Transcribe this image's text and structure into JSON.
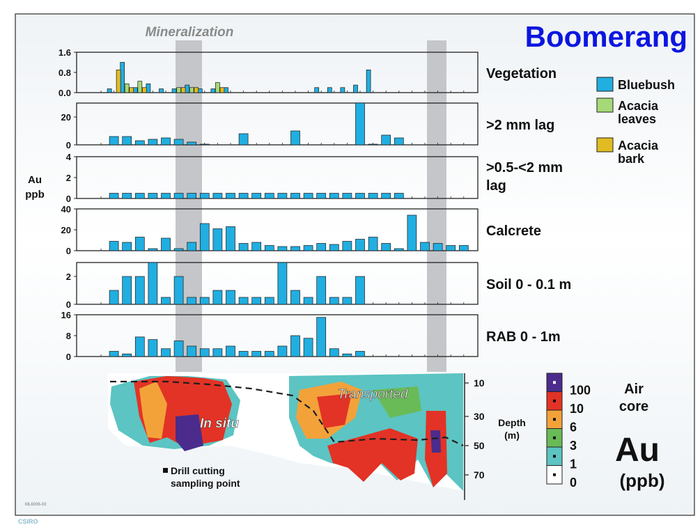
{
  "slide": {
    "title": "Boomerang",
    "mineralization_label": "Mineralization",
    "y_axis_label_line1": "Au",
    "y_axis_label_line2": "ppb",
    "footer_code": "ML6006-03",
    "footer_logo": "CSIRO"
  },
  "colors": {
    "bluebush": "#21aee0",
    "acacia_leaves": "#a6d978",
    "acacia_bark": "#e1bb22",
    "title": "#0b16e0",
    "mineralization_band": "#c4c6c9"
  },
  "legend": {
    "items": [
      {
        "label_line1": "Bluebush",
        "label_line2": "",
        "color": "#21aee0"
      },
      {
        "label_line1": "Acacia",
        "label_line2": "leaves",
        "color": "#a6d978"
      },
      {
        "label_line1": "Acacia",
        "label_line2": "bark",
        "color": "#e1bb22"
      }
    ]
  },
  "chart_data": [
    {
      "type": "bar",
      "panel_label_line1": "Vegetation",
      "panel_label_line2": "",
      "ylim": [
        0,
        1.6
      ],
      "yticks": [
        "0.0",
        "0.8",
        "1.6"
      ],
      "series": [
        {
          "name": "Bluebush",
          "points": [
            [
              1,
              0.15
            ],
            [
              2,
              1.2
            ],
            [
              3,
              0.2
            ],
            [
              4,
              0.35
            ],
            [
              5,
              0.15
            ],
            [
              6,
              0.15
            ],
            [
              7,
              0.3
            ],
            [
              8,
              0.15
            ],
            [
              9,
              0.15
            ],
            [
              10,
              0.2
            ],
            [
              17,
              0.2
            ],
            [
              18,
              0.2
            ],
            [
              19,
              0.2
            ],
            [
              20,
              0.3
            ],
            [
              21,
              0.9
            ]
          ]
        },
        {
          "name": "Acacia leaves",
          "points": [
            [
              2,
              0.35
            ],
            [
              3,
              0.45
            ],
            [
              6,
              0.2
            ],
            [
              7,
              0.2
            ],
            [
              9,
              0.4
            ]
          ]
        },
        {
          "name": "Acacia bark",
          "points": [
            [
              1,
              0.9
            ],
            [
              2,
              0.2
            ],
            [
              3,
              0.2
            ],
            [
              6,
              0.2
            ],
            [
              7,
              0.2
            ],
            [
              9,
              0.2
            ]
          ]
        }
      ]
    },
    {
      "type": "bar",
      "panel_label_line1": ">2 mm lag",
      "panel_label_line2": "",
      "ylim": [
        0,
        30
      ],
      "yticks": [
        "0",
        "20"
      ],
      "series": [
        {
          "name": "Bluebush",
          "points": [
            [
              1,
              6
            ],
            [
              2,
              6
            ],
            [
              3,
              3
            ],
            [
              4,
              4
            ],
            [
              5,
              5
            ],
            [
              6,
              4
            ],
            [
              7,
              2
            ],
            [
              8,
              0.5
            ],
            [
              11,
              8
            ],
            [
              15,
              10
            ],
            [
              20,
              30
            ],
            [
              21,
              0.5
            ],
            [
              22,
              7
            ],
            [
              23,
              5
            ]
          ]
        }
      ]
    },
    {
      "type": "bar",
      "panel_label_line1": ">0.5-<2 mm",
      "panel_label_line2": "lag",
      "ylim": [
        0,
        4
      ],
      "yticks": [
        "0",
        "2",
        "4"
      ],
      "series": [
        {
          "name": "Bluebush",
          "points": [
            [
              1,
              0.5
            ],
            [
              2,
              0.5
            ],
            [
              3,
              0.5
            ],
            [
              4,
              0.5
            ],
            [
              5,
              0.5
            ],
            [
              6,
              0.5
            ],
            [
              7,
              0.5
            ],
            [
              8,
              0.5
            ],
            [
              9,
              0.5
            ],
            [
              10,
              0.5
            ],
            [
              11,
              0.5
            ],
            [
              12,
              0.5
            ],
            [
              13,
              0.5
            ],
            [
              14,
              0.5
            ],
            [
              15,
              0.5
            ],
            [
              16,
              0.5
            ],
            [
              17,
              0.5
            ],
            [
              18,
              0.5
            ],
            [
              19,
              0.5
            ],
            [
              20,
              0.5
            ],
            [
              21,
              0.5
            ],
            [
              22,
              0.5
            ],
            [
              23,
              0.5
            ]
          ]
        }
      ]
    },
    {
      "type": "bar",
      "panel_label_line1": "Calcrete",
      "panel_label_line2": "",
      "ylim": [
        0,
        40
      ],
      "yticks": [
        "0",
        "20",
        "40"
      ],
      "series": [
        {
          "name": "Bluebush",
          "points": [
            [
              1,
              9
            ],
            [
              2,
              8
            ],
            [
              3,
              13
            ],
            [
              4,
              2
            ],
            [
              5,
              12
            ],
            [
              6,
              2
            ],
            [
              7,
              8
            ],
            [
              8,
              26
            ],
            [
              9,
              21
            ],
            [
              10,
              23
            ],
            [
              11,
              7
            ],
            [
              12,
              8
            ],
            [
              13,
              5
            ],
            [
              14,
              4
            ],
            [
              15,
              4
            ],
            [
              16,
              5
            ],
            [
              17,
              7
            ],
            [
              18,
              6
            ],
            [
              19,
              9
            ],
            [
              20,
              11
            ],
            [
              21,
              13
            ],
            [
              22,
              7
            ],
            [
              23,
              2
            ],
            [
              24,
              34
            ],
            [
              25,
              8
            ],
            [
              26,
              7
            ],
            [
              27,
              5
            ],
            [
              28,
              5
            ]
          ]
        }
      ]
    },
    {
      "type": "bar",
      "panel_label_line1": "Soil 0 - 0.1 m",
      "panel_label_line2": "",
      "ylim": [
        0,
        3
      ],
      "yticks": [
        "0",
        "2"
      ],
      "series": [
        {
          "name": "Bluebush",
          "points": [
            [
              1,
              1
            ],
            [
              2,
              2
            ],
            [
              3,
              2
            ],
            [
              4,
              3
            ],
            [
              5,
              0.5
            ],
            [
              6,
              2
            ],
            [
              7,
              0.5
            ],
            [
              8,
              0.5
            ],
            [
              9,
              1
            ],
            [
              10,
              1
            ],
            [
              11,
              0.5
            ],
            [
              12,
              0.5
            ],
            [
              13,
              0.5
            ],
            [
              14,
              3
            ],
            [
              15,
              1
            ],
            [
              16,
              0.5
            ],
            [
              17,
              2
            ],
            [
              18,
              0.5
            ],
            [
              19,
              0.5
            ],
            [
              20,
              2
            ]
          ]
        }
      ]
    },
    {
      "type": "bar",
      "panel_label_line1": "RAB 0 - 1m",
      "panel_label_line2": "",
      "ylim": [
        0,
        16
      ],
      "yticks": [
        "0",
        "8",
        "16"
      ],
      "series": [
        {
          "name": "Bluebush",
          "points": [
            [
              1,
              2
            ],
            [
              2,
              1
            ],
            [
              3,
              7.5
            ],
            [
              4,
              6.5
            ],
            [
              5,
              3
            ],
            [
              6,
              6
            ],
            [
              7,
              4
            ],
            [
              8,
              3
            ],
            [
              9,
              3
            ],
            [
              10,
              4
            ],
            [
              11,
              2
            ],
            [
              12,
              2
            ],
            [
              13,
              2
            ],
            [
              14,
              4
            ],
            [
              15,
              8
            ],
            [
              16,
              7
            ],
            [
              17,
              15
            ],
            [
              18,
              3
            ],
            [
              19,
              1
            ],
            [
              20,
              2
            ]
          ]
        }
      ]
    }
  ],
  "section": {
    "transported_label": "Transported",
    "in_situ_label": "In situ",
    "depth_ticks": [
      "10",
      "30",
      "50",
      "70"
    ],
    "depth_label_line1": "Depth",
    "depth_label_line2": "(m)",
    "drill_label_line1": "Drill cutting",
    "drill_label_line2": "sampling point"
  },
  "scale": {
    "entries": [
      {
        "label": "100",
        "color": "#4b2c8c"
      },
      {
        "label": "10",
        "color": "#e23326"
      },
      {
        "label": "6",
        "color": "#f3a23a"
      },
      {
        "label": "3",
        "color": "#69bb57"
      },
      {
        "label": "1",
        "color": "#5cc4c2"
      },
      {
        "label": "0",
        "color": "#ffffff"
      }
    ],
    "title_line1": "Air",
    "title_line2": "core",
    "element": "Au",
    "unit": "(ppb)"
  }
}
